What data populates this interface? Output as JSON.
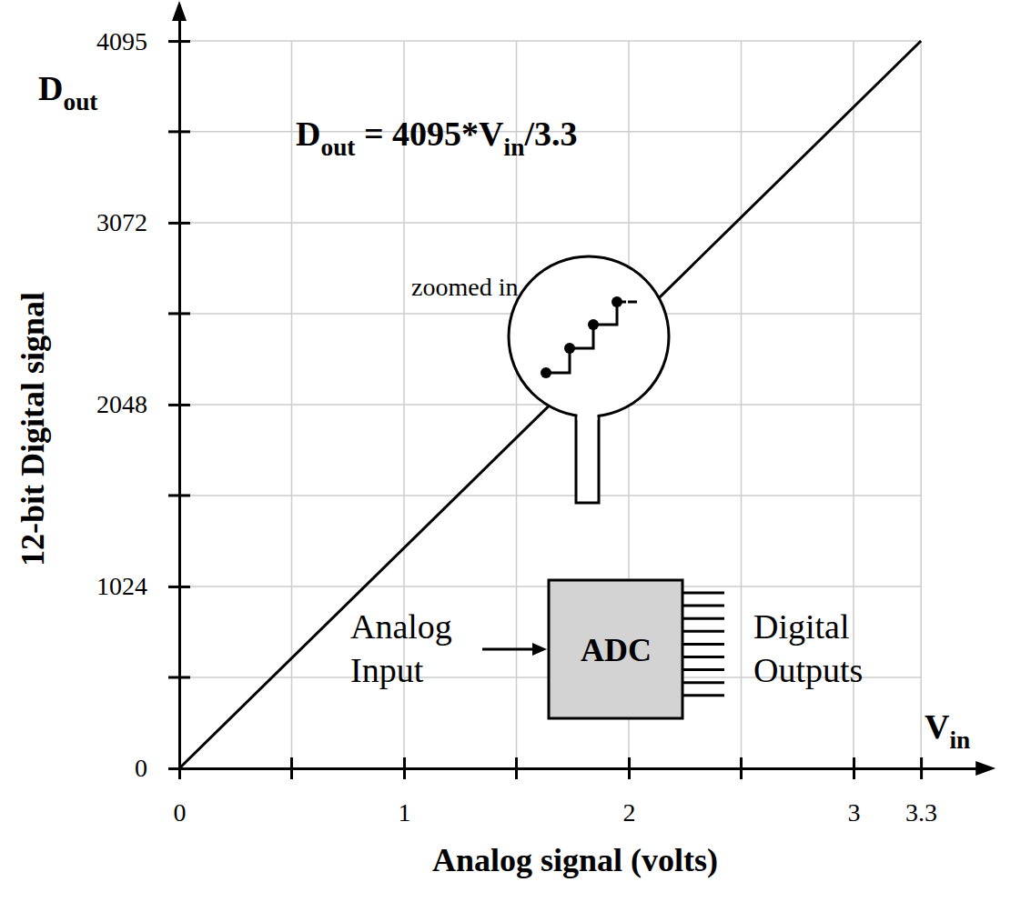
{
  "chart_data": {
    "type": "line",
    "x": [
      0,
      3.3
    ],
    "values": [
      0,
      4095
    ],
    "color": "#000000",
    "xlim": [
      0,
      3.6
    ],
    "ylim": [
      0,
      4300
    ],
    "xticks": [
      0,
      1,
      2,
      3,
      3.3
    ],
    "yticks": [
      0,
      1024,
      2048,
      3072,
      4095
    ],
    "x_minor_ticks": [
      0.5,
      1.5,
      2.5
    ],
    "y_minor_ticks": [
      512,
      1536,
      2560,
      3584
    ],
    "grid": true,
    "x_label": "Analog signal (volts)",
    "y_label": "12-bit Digital signal",
    "x_symbol": [
      {
        "text": "V"
      },
      {
        "text": "in",
        "sub": true
      }
    ],
    "y_symbol": [
      {
        "text": "D"
      },
      {
        "text": "out",
        "sub": true
      }
    ],
    "equation": [
      {
        "text": "D"
      },
      {
        "text": "out",
        "sub": true
      },
      {
        "text": " = 4095*V"
      },
      {
        "text": "in",
        "sub": true
      },
      {
        "text": "/3.3"
      }
    ],
    "annotations": {
      "zoom": "zoomed in",
      "input": [
        "Analog",
        "Input"
      ],
      "block": "ADC",
      "output": [
        "Digital",
        "Outputs"
      ]
    }
  }
}
